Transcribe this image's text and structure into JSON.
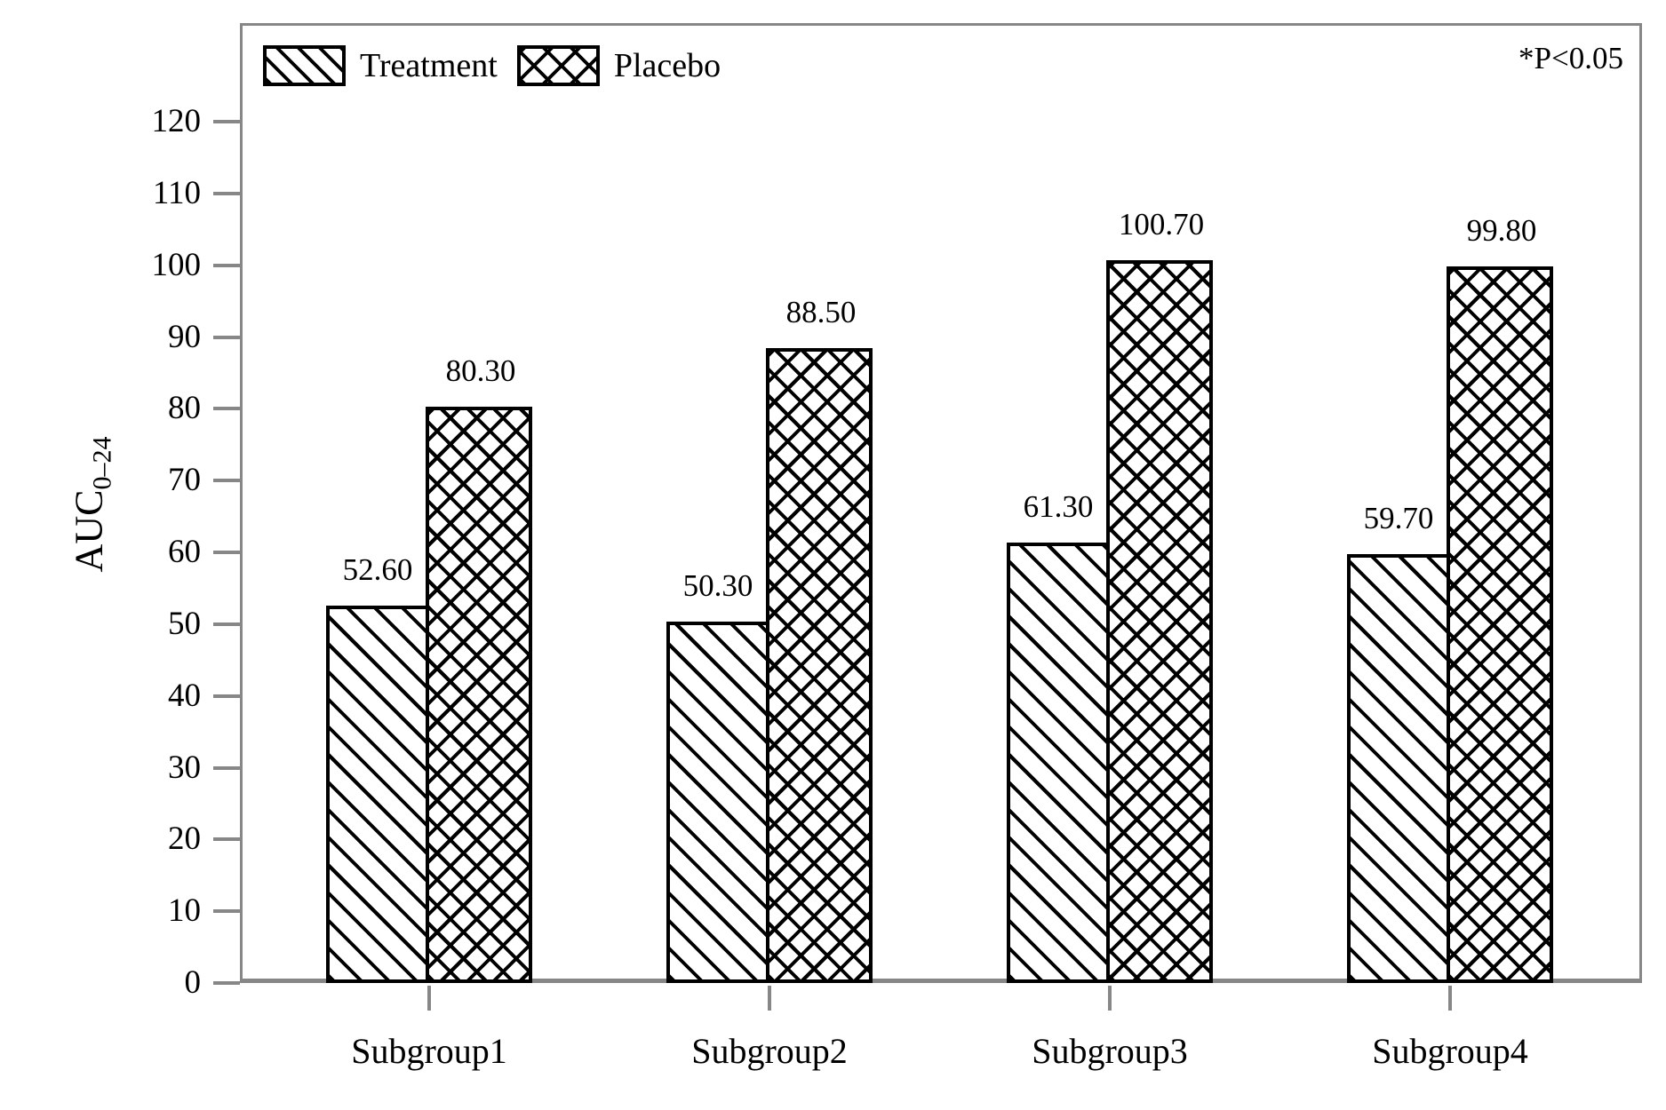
{
  "chart_data": {
    "type": "bar",
    "title": "",
    "categories": [
      "Subgroup1",
      "Subgroup2",
      "Subgroup3",
      "Subgroup4"
    ],
    "series": [
      {
        "name": "Treatment",
        "pattern": "diagonal",
        "values": [
          52.6,
          50.3,
          61.3,
          59.7
        ],
        "labels": [
          "52.60",
          "50.30",
          "61.30",
          "59.70"
        ]
      },
      {
        "name": "Placebo",
        "pattern": "crosshatch",
        "values": [
          80.3,
          88.5,
          100.7,
          99.8
        ],
        "labels": [
          "80.30",
          "88.50",
          "100.70",
          "99.80"
        ]
      }
    ],
    "xlabel": "",
    "ylabel": "AUC0-24",
    "ylabel_main": "AUC",
    "ylabel_sub": "0–24",
    "y_ticks": [
      0,
      10,
      20,
      30,
      40,
      50,
      60,
      70,
      80,
      90,
      100,
      110,
      120
    ],
    "ylim": [
      0,
      133
    ],
    "annotation": "*P<0.05",
    "legend_position": "top-left",
    "grid": false,
    "colors": {
      "bar_fill": "#ffffff",
      "bar_stroke": "#000000",
      "axis": "#878787",
      "text": "#000000",
      "background": "#ffffff"
    }
  }
}
